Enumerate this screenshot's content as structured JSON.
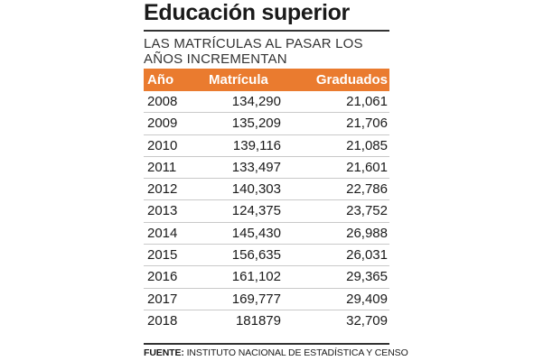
{
  "title": "Educación superior",
  "subtitle": "LAS MATRÍCULAS AL PASAR LOS AÑOS INCREMENTAN",
  "colors": {
    "header_bg": "#ea7b2f",
    "header_text": "#ffffff"
  },
  "table": {
    "headers": [
      "Año",
      "Matrícula",
      "Graduados"
    ],
    "rows": [
      [
        "2008",
        "134,290",
        "21,061"
      ],
      [
        "2009",
        "135,209",
        "21,706"
      ],
      [
        "2010",
        "139,116",
        "21,085"
      ],
      [
        "2011",
        "133,497",
        "21,601"
      ],
      [
        "2012",
        "140,303",
        "22,786"
      ],
      [
        "2013",
        "124,375",
        "23,752"
      ],
      [
        "2014",
        "145,430",
        "26,988"
      ],
      [
        "2015",
        "156,635",
        "26,031"
      ],
      [
        "2016",
        "161,102",
        "29,365"
      ],
      [
        "2017",
        "169,777",
        "29,409"
      ],
      [
        "2018",
        "181879",
        "32,709"
      ]
    ]
  },
  "source": {
    "label": "FUENTE:",
    "text": " INSTITUTO NACIONAL DE ESTADÍSTICA Y CENSO"
  }
}
